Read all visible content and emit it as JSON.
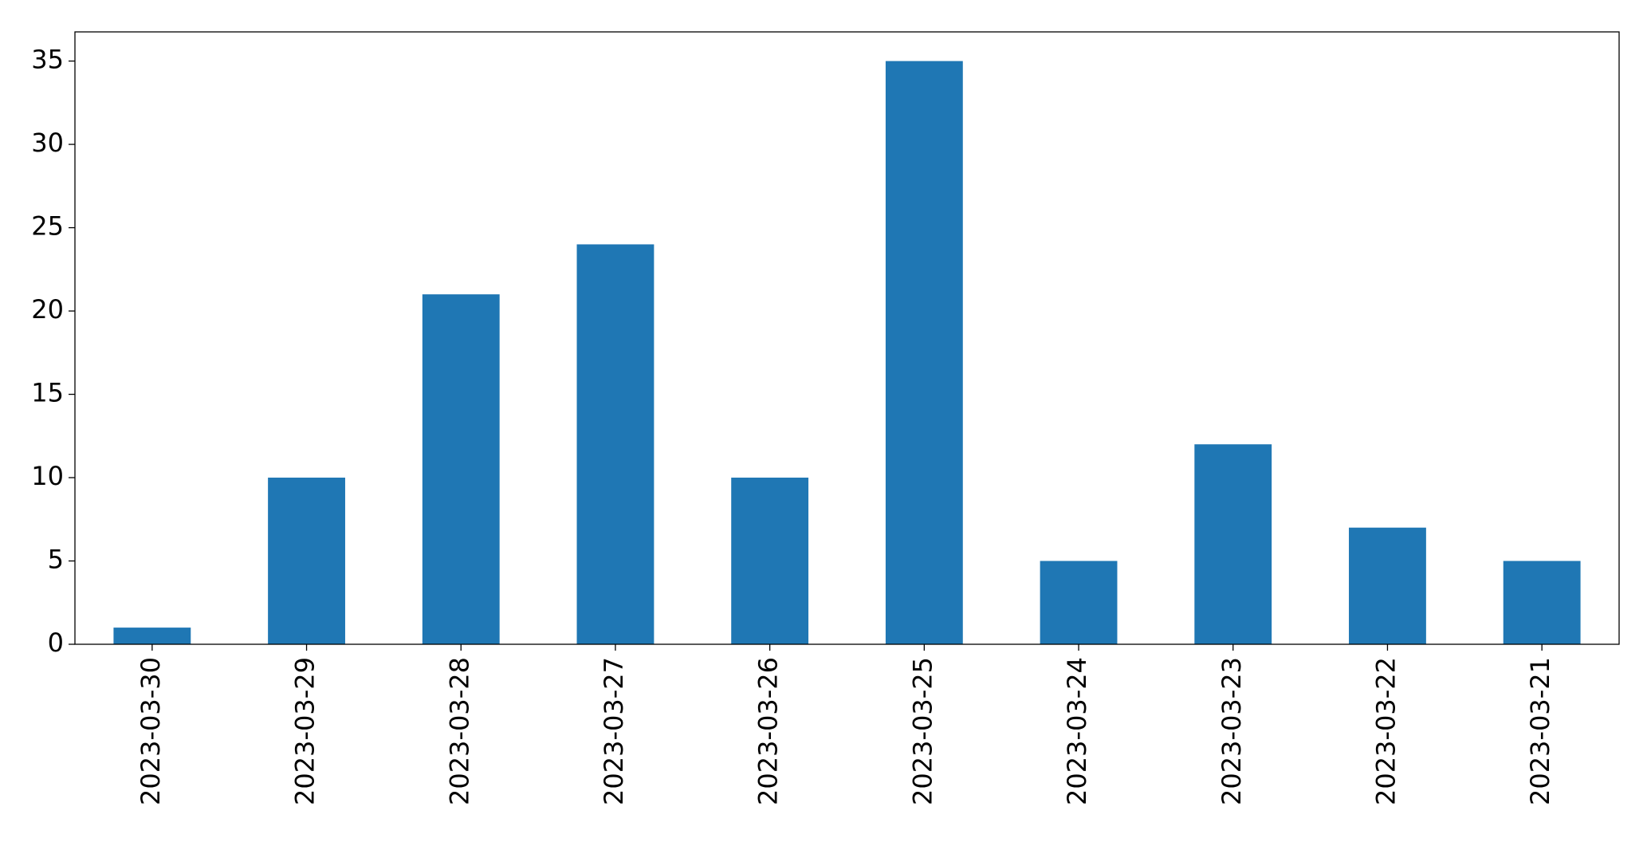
{
  "chart_data": {
    "type": "bar",
    "categories": [
      "2023-03-30",
      "2023-03-29",
      "2023-03-28",
      "2023-03-27",
      "2023-03-26",
      "2023-03-25",
      "2023-03-24",
      "2023-03-23",
      "2023-03-22",
      "2023-03-21"
    ],
    "values": [
      1,
      10,
      21,
      24,
      10,
      35,
      5,
      12,
      7,
      5
    ],
    "color": "#1f77b4",
    "ylim": [
      0,
      36.75
    ],
    "yticks": [
      0,
      5,
      10,
      15,
      20,
      25,
      30,
      35
    ],
    "grid": false
  }
}
